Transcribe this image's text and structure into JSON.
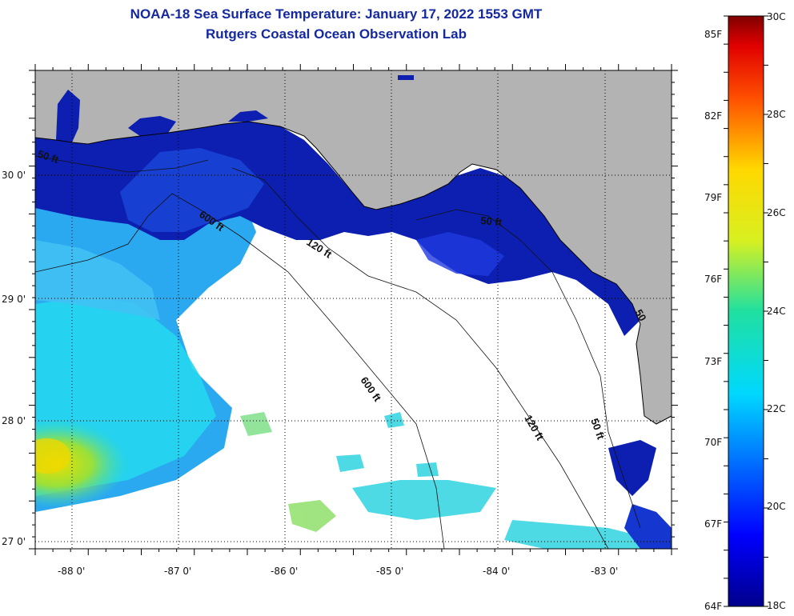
{
  "header": {
    "title": "NOAA-18 Sea Surface Temperature:  January 17, 2022 1553 GMT",
    "subtitle": "Rutgers Coastal Ocean Observation Lab"
  },
  "map": {
    "lat_labels": [
      "30 0'",
      "29 0'",
      "28 0'",
      "27 0'"
    ],
    "lon_labels": [
      "-88 0'",
      "-87 0'",
      "-86 0'",
      "-85 0'",
      "-84 0'",
      "-83 0'"
    ],
    "contour_labels": [
      "50 ft",
      "600 ft",
      "120 ft",
      "50 ft",
      "50",
      "600 ft",
      "120 ft",
      "50 ft"
    ],
    "colors": {
      "land": "#b3b3b3",
      "cloud": "#ffffff",
      "coastline": "#000000"
    }
  },
  "colorbar": {
    "fahrenheit": [
      "85F",
      "82F",
      "79F",
      "76F",
      "73F",
      "70F",
      "67F",
      "64F"
    ],
    "celsius": [
      "30C",
      "28C",
      "26C",
      "24C",
      "22C",
      "20C",
      "18C"
    ],
    "range_c": [
      18,
      30
    ]
  }
}
